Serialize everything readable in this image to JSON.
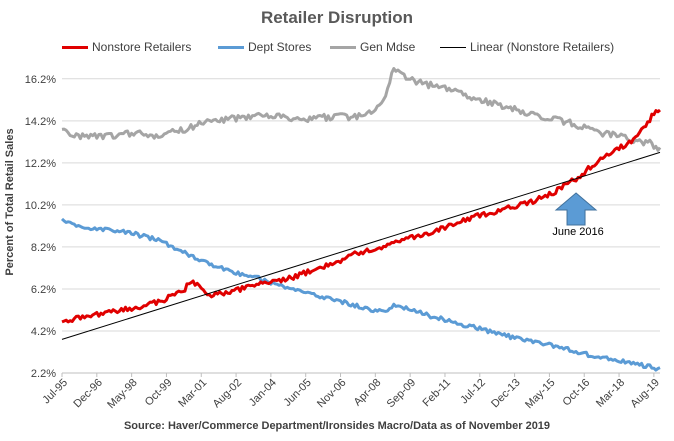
{
  "chart_data": {
    "type": "line",
    "title": "Retailer Disruption",
    "ylabel": "Percent of Total Retail Sales",
    "xlabel": "",
    "source": "Source: Haver/Commerce Department/Ironsides Macro/Data as of November 2019",
    "y_ticks": [
      "2.2%",
      "4.2%",
      "6.2%",
      "8.2%",
      "10.2%",
      "12.2%",
      "14.2%",
      "16.2%"
    ],
    "ylim": [
      2.2,
      17.0
    ],
    "x_ticks": [
      "Jul-95",
      "Dec-96",
      "May-98",
      "Oct-99",
      "Mar-01",
      "Aug-02",
      "Jan-04",
      "Jun-05",
      "Nov-06",
      "Apr-08",
      "Sep-09",
      "Feb-11",
      "Jul-12",
      "Dec-13",
      "May-15",
      "Oct-16",
      "Mar-18",
      "Aug-19"
    ],
    "xlim": [
      "Jul-95",
      "Nov-19"
    ],
    "grid": "horizontal",
    "legend_position": "top",
    "series": [
      {
        "name": "Nonstore Retailers",
        "color": "#e00000",
        "points": [
          [
            "Jul-95",
            4.6
          ],
          [
            "Jul-96",
            4.9
          ],
          [
            "Jul-97",
            5.1
          ],
          [
            "Jul-98",
            5.3
          ],
          [
            "Jul-99",
            5.6
          ],
          [
            "Jul-00",
            6.2
          ],
          [
            "Oct-00",
            6.6
          ],
          [
            "Jul-01",
            5.9
          ],
          [
            "Jul-02",
            6.1
          ],
          [
            "Jul-03",
            6.4
          ],
          [
            "Jul-04",
            6.6
          ],
          [
            "Jul-05",
            7.0
          ],
          [
            "Jul-06",
            7.4
          ],
          [
            "Jul-07",
            7.9
          ],
          [
            "Jul-08",
            8.2
          ],
          [
            "Jul-09",
            8.6
          ],
          [
            "Jul-10",
            8.9
          ],
          [
            "Jul-11",
            9.3
          ],
          [
            "Jul-12",
            9.7
          ],
          [
            "Jul-13",
            10.0
          ],
          [
            "Jul-14",
            10.3
          ],
          [
            "Jul-15",
            10.8
          ],
          [
            "Jul-16",
            11.5
          ],
          [
            "Jul-17",
            12.5
          ],
          [
            "Jul-18",
            13.1
          ],
          [
            "Jan-19",
            13.6
          ],
          [
            "Jul-19",
            14.4
          ],
          [
            "Nov-19",
            14.8
          ]
        ]
      },
      {
        "name": "Dept Stores",
        "color": "#5b9bd5",
        "points": [
          [
            "Jul-95",
            9.5
          ],
          [
            "Jul-96",
            9.1
          ],
          [
            "Jul-97",
            9.0
          ],
          [
            "Jul-98",
            8.8
          ],
          [
            "Jul-99",
            8.5
          ],
          [
            "Jul-00",
            7.9
          ],
          [
            "Jul-01",
            7.4
          ],
          [
            "Jul-02",
            7.0
          ],
          [
            "Jul-03",
            6.7
          ],
          [
            "Jul-04",
            6.3
          ],
          [
            "Jul-05",
            6.0
          ],
          [
            "Jul-06",
            5.7
          ],
          [
            "Jul-07",
            5.4
          ],
          [
            "Jul-08",
            5.1
          ],
          [
            "Jan-09",
            5.4
          ],
          [
            "Jul-09",
            5.3
          ],
          [
            "Jul-10",
            4.9
          ],
          [
            "Jul-11",
            4.6
          ],
          [
            "Jul-12",
            4.3
          ],
          [
            "Jul-13",
            4.0
          ],
          [
            "Jul-14",
            3.7
          ],
          [
            "Jul-15",
            3.5
          ],
          [
            "Jul-16",
            3.2
          ],
          [
            "Jul-17",
            2.9
          ],
          [
            "Jul-18",
            2.7
          ],
          [
            "Nov-19",
            2.4
          ]
        ]
      },
      {
        "name": "Gen Mdse",
        "color": "#a5a5a5",
        "points": [
          [
            "Jul-95",
            13.7
          ],
          [
            "Jul-96",
            13.4
          ],
          [
            "Jul-97",
            13.5
          ],
          [
            "Jul-98",
            13.6
          ],
          [
            "Jul-99",
            13.5
          ],
          [
            "Jul-00",
            13.8
          ],
          [
            "Jul-01",
            14.2
          ],
          [
            "Jul-02",
            14.3
          ],
          [
            "Jul-03",
            14.4
          ],
          [
            "Jul-04",
            14.4
          ],
          [
            "Jul-05",
            14.3
          ],
          [
            "Jul-06",
            14.4
          ],
          [
            "Jul-07",
            14.4
          ],
          [
            "Jul-08",
            14.9
          ],
          [
            "Jan-09",
            16.6
          ],
          [
            "Jul-09",
            16.2
          ],
          [
            "Jul-10",
            15.9
          ],
          [
            "Jul-11",
            15.6
          ],
          [
            "Jul-12",
            15.2
          ],
          [
            "Jul-13",
            14.9
          ],
          [
            "Jul-14",
            14.6
          ],
          [
            "Jul-15",
            14.3
          ],
          [
            "Jul-16",
            14.0
          ],
          [
            "Jul-17",
            13.6
          ],
          [
            "Jul-18",
            13.4
          ],
          [
            "Jul-19",
            13.1
          ],
          [
            "Nov-19",
            12.9
          ]
        ]
      },
      {
        "name": "Linear (Nonstore Retailers)",
        "color": "#000000",
        "points": [
          [
            "Jul-95",
            3.8
          ],
          [
            "Nov-19",
            12.7
          ]
        ]
      }
    ],
    "annotations": [
      {
        "text": "June 2016",
        "at": "Jun-16",
        "arrow": "up",
        "color": "#5b9bd5"
      }
    ]
  }
}
